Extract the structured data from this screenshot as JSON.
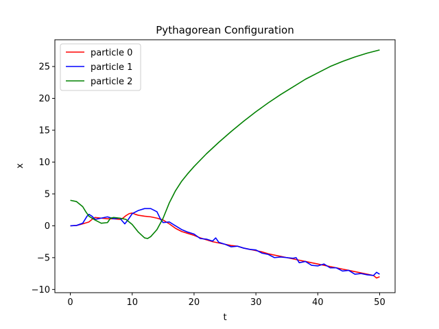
{
  "chart_data": {
    "type": "line",
    "title": "Pythagorean Configuration",
    "xlabel": "t",
    "ylabel": "x",
    "xlim": [
      -2.5,
      52.5
    ],
    "ylim": [
      -10.5,
      29.2
    ],
    "xticks": [
      0,
      10,
      20,
      30,
      40,
      50
    ],
    "yticks": [
      -10,
      -5,
      0,
      5,
      10,
      15,
      20,
      25
    ],
    "grid": false,
    "legend_position": "top-left",
    "series": [
      {
        "name": "particle 0",
        "color": "#ff0000",
        "points": [
          [
            0,
            0
          ],
          [
            1,
            0.05
          ],
          [
            2,
            0.3
          ],
          [
            3,
            0.6
          ],
          [
            3.5,
            1.0
          ],
          [
            4,
            1.3
          ],
          [
            5,
            1.2
          ],
          [
            6,
            1.1
          ],
          [
            7,
            1.1
          ],
          [
            8,
            1.0
          ],
          [
            8.5,
            1.2
          ],
          [
            9,
            1.6
          ],
          [
            9.5,
            1.9
          ],
          [
            10,
            2.0
          ],
          [
            10.5,
            1.8
          ],
          [
            11,
            1.65
          ],
          [
            12,
            1.5
          ],
          [
            13,
            1.4
          ],
          [
            14,
            1.2
          ],
          [
            15,
            0.9
          ],
          [
            16,
            0.3
          ],
          [
            17,
            -0.4
          ],
          [
            18,
            -0.9
          ],
          [
            19,
            -1.2
          ],
          [
            20,
            -1.5
          ],
          [
            21,
            -1.9
          ],
          [
            22,
            -2.2
          ],
          [
            23,
            -2.5
          ],
          [
            24,
            -2.7
          ],
          [
            25,
            -2.9
          ],
          [
            26,
            -3.1
          ],
          [
            27,
            -3.2
          ],
          [
            28,
            -3.5
          ],
          [
            29,
            -3.7
          ],
          [
            30,
            -3.9
          ],
          [
            31,
            -4.1
          ],
          [
            32,
            -4.4
          ],
          [
            33,
            -4.6
          ],
          [
            34,
            -4.8
          ],
          [
            35,
            -5.0
          ],
          [
            36,
            -5.2
          ],
          [
            37,
            -5.4
          ],
          [
            38,
            -5.6
          ],
          [
            39,
            -5.8
          ],
          [
            40,
            -6.0
          ],
          [
            41,
            -6.2
          ],
          [
            42,
            -6.4
          ],
          [
            43,
            -6.6
          ],
          [
            44,
            -6.8
          ],
          [
            45,
            -7.0
          ],
          [
            46,
            -7.2
          ],
          [
            47,
            -7.4
          ],
          [
            48,
            -7.6
          ],
          [
            49,
            -7.8
          ],
          [
            49.5,
            -8.2
          ],
          [
            50,
            -8.0
          ]
        ]
      },
      {
        "name": "particle 1",
        "color": "#0000ff",
        "points": [
          [
            0,
            0
          ],
          [
            1,
            0.05
          ],
          [
            2,
            0.4
          ],
          [
            2.7,
            1.5
          ],
          [
            3,
            1.8
          ],
          [
            3.5,
            1.5
          ],
          [
            4,
            1.0
          ],
          [
            5,
            1.2
          ],
          [
            6,
            1.4
          ],
          [
            7,
            1.1
          ],
          [
            8,
            1.2
          ],
          [
            8.8,
            0.3
          ],
          [
            9.3,
            0.9
          ],
          [
            10,
            1.9
          ],
          [
            11,
            2.4
          ],
          [
            12,
            2.7
          ],
          [
            13,
            2.7
          ],
          [
            14,
            2.2
          ],
          [
            14.6,
            1.0
          ],
          [
            15,
            0.5
          ],
          [
            16,
            0.6
          ],
          [
            17,
            0
          ],
          [
            18,
            -0.6
          ],
          [
            19,
            -1.0
          ],
          [
            20,
            -1.3
          ],
          [
            21,
            -2.0
          ],
          [
            22,
            -2.1
          ],
          [
            23,
            -2.4
          ],
          [
            23.5,
            -1.9
          ],
          [
            24,
            -2.6
          ],
          [
            25,
            -2.9
          ],
          [
            26,
            -3.3
          ],
          [
            27,
            -3.2
          ],
          [
            28,
            -3.5
          ],
          [
            29,
            -3.7
          ],
          [
            30,
            -3.8
          ],
          [
            31,
            -4.3
          ],
          [
            32,
            -4.5
          ],
          [
            33,
            -5.0
          ],
          [
            34,
            -4.9
          ],
          [
            35,
            -5.0
          ],
          [
            36,
            -5.1
          ],
          [
            36.5,
            -5.0
          ],
          [
            37,
            -5.8
          ],
          [
            38,
            -5.6
          ],
          [
            39,
            -6.2
          ],
          [
            40,
            -6.3
          ],
          [
            41,
            -6.0
          ],
          [
            42,
            -6.6
          ],
          [
            43,
            -6.6
          ],
          [
            44,
            -7.1
          ],
          [
            45,
            -7.0
          ],
          [
            46,
            -7.6
          ],
          [
            47,
            -7.5
          ],
          [
            48,
            -7.7
          ],
          [
            49,
            -7.8
          ],
          [
            49.5,
            -7.3
          ],
          [
            50,
            -7.6
          ]
        ]
      },
      {
        "name": "particle 2",
        "color": "#008000",
        "points": [
          [
            0,
            4.0
          ],
          [
            1,
            3.8
          ],
          [
            2,
            3.0
          ],
          [
            2.5,
            2.2
          ],
          [
            3,
            1.5
          ],
          [
            4,
            0.9
          ],
          [
            5,
            0.4
          ],
          [
            6,
            0.5
          ],
          [
            6.5,
            1.2
          ],
          [
            7,
            1.3
          ],
          [
            8,
            1.2
          ],
          [
            9,
            1.0
          ],
          [
            10,
            0.2
          ],
          [
            11,
            -1.0
          ],
          [
            12,
            -1.9
          ],
          [
            12.5,
            -2.0
          ],
          [
            13,
            -1.7
          ],
          [
            14,
            -0.6
          ],
          [
            15,
            1.2
          ],
          [
            16,
            3.6
          ],
          [
            17,
            5.5
          ],
          [
            18,
            7.0
          ],
          [
            19,
            8.2
          ],
          [
            20,
            9.3
          ],
          [
            22,
            11.3
          ],
          [
            24,
            13.1
          ],
          [
            26,
            14.8
          ],
          [
            28,
            16.4
          ],
          [
            30,
            17.9
          ],
          [
            32,
            19.3
          ],
          [
            34,
            20.6
          ],
          [
            36,
            21.8
          ],
          [
            38,
            23.0
          ],
          [
            40,
            24.0
          ],
          [
            42,
            25.0
          ],
          [
            44,
            25.8
          ],
          [
            46,
            26.5
          ],
          [
            48,
            27.1
          ],
          [
            50,
            27.6
          ]
        ]
      }
    ]
  }
}
